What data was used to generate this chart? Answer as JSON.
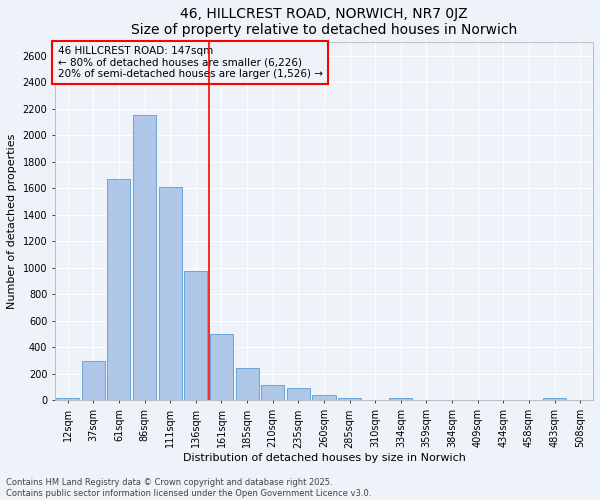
{
  "title1": "46, HILLCREST ROAD, NORWICH, NR7 0JZ",
  "title2": "Size of property relative to detached houses in Norwich",
  "xlabel": "Distribution of detached houses by size in Norwich",
  "ylabel": "Number of detached properties",
  "categories": [
    "12sqm",
    "37sqm",
    "61sqm",
    "86sqm",
    "111sqm",
    "136sqm",
    "161sqm",
    "185sqm",
    "210sqm",
    "235sqm",
    "260sqm",
    "285sqm",
    "310sqm",
    "334sqm",
    "359sqm",
    "384sqm",
    "409sqm",
    "434sqm",
    "458sqm",
    "483sqm",
    "508sqm"
  ],
  "values": [
    20,
    295,
    1670,
    2150,
    1610,
    975,
    505,
    248,
    118,
    95,
    40,
    22,
    0,
    18,
    5,
    0,
    0,
    0,
    0,
    22,
    0
  ],
  "bar_color": "#aec6e8",
  "bar_edge_color": "#5b9bd5",
  "vline_x": 5.5,
  "vline_color": "red",
  "annotation_text": "46 HILLCREST ROAD: 147sqm\n← 80% of detached houses are smaller (6,226)\n20% of semi-detached houses are larger (1,526) →",
  "annotation_box_color": "red",
  "ylim": [
    0,
    2700
  ],
  "yticks": [
    0,
    200,
    400,
    600,
    800,
    1000,
    1200,
    1400,
    1600,
    1800,
    2000,
    2200,
    2400,
    2600
  ],
  "footer1": "Contains HM Land Registry data © Crown copyright and database right 2025.",
  "footer2": "Contains public sector information licensed under the Open Government Licence v3.0.",
  "bg_color": "#eef2f9",
  "grid_color": "#ffffff",
  "title1_fontsize": 10,
  "title2_fontsize": 9,
  "xlabel_fontsize": 8,
  "ylabel_fontsize": 8,
  "tick_fontsize": 7,
  "annotation_fontsize": 7.5,
  "footer_fontsize": 6
}
